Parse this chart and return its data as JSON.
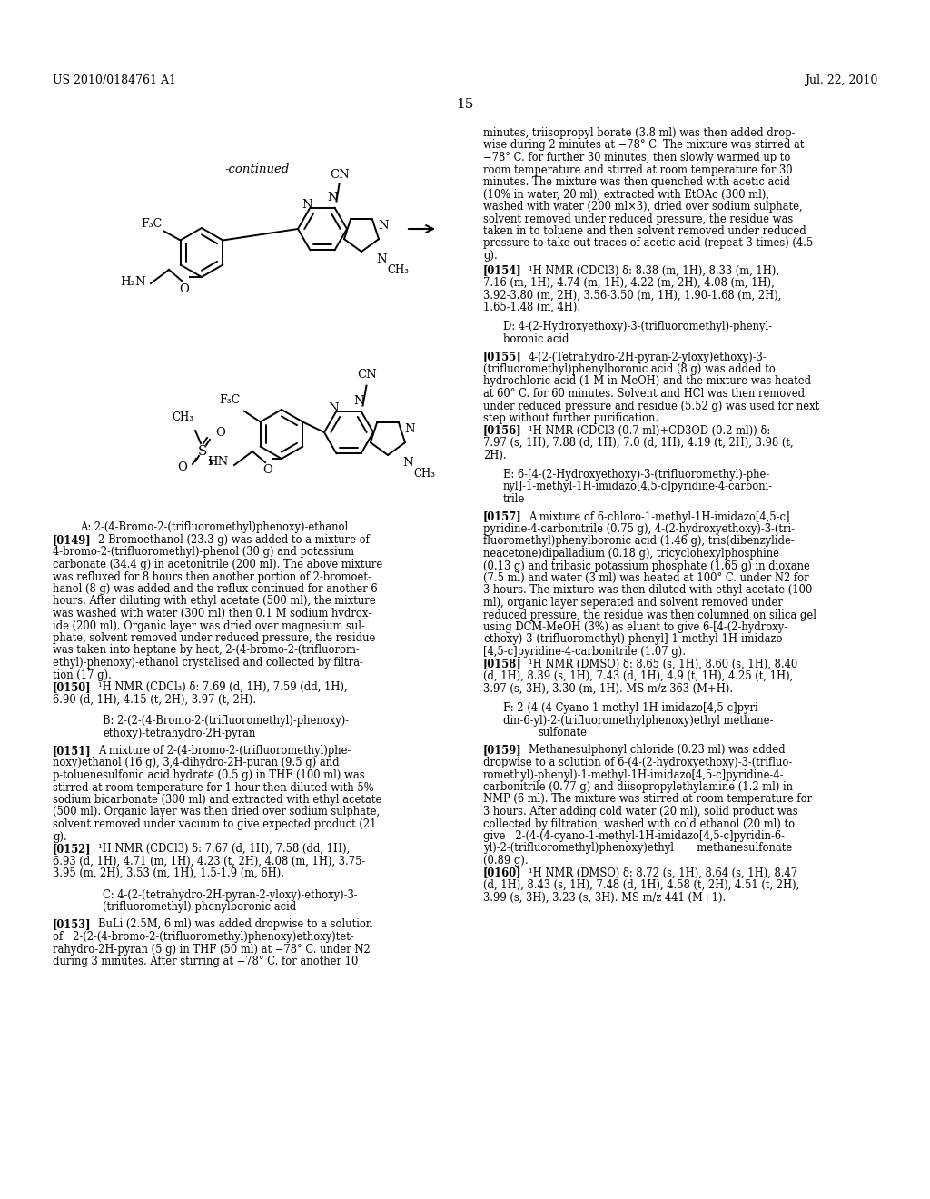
{
  "page_number": "15",
  "header_left": "US 2010/0184761 A1",
  "header_right": "Jul. 22, 2010",
  "bg": "#ffffff",
  "continued_label": "-continued",
  "compound_a_label": "A: 2-(4-Bromo-2-(trifluoromethyl)phenoxy)-ethanol",
  "right_top_lines": [
    "minutes, triisopropyl borate (3.8 ml) was then added drop-",
    "wise during 2 minutes at −78° C. The mixture was stirred at",
    "−78° C. for further 30 minutes, then slowly warmed up to",
    "room temperature and stirred at room temperature for 30",
    "minutes. The mixture was then quenched with acetic acid",
    "(10% in water, 20 ml), extracted with EtOAc (300 ml),",
    "washed with water (200 ml×3), dried over sodium sulphate,",
    "solvent removed under reduced pressure, the residue was",
    "taken in to toluene and then solvent removed under reduced",
    "pressure to take out traces of acetic acid (repeat 3 times) (4.5",
    "g)."
  ],
  "para_0154_lines": [
    "¹H NMR (CDCl3) δ: 8.38 (m, 1H), 8.33 (m, 1H),",
    "7.16 (m, 1H), 4.74 (m, 1H), 4.22 (m, 2H), 4.08 (m, 1H),",
    "3.92-3.80 (m, 2H), 3.56-3.50 (m, 1H), 1.90-1.68 (m, 2H),",
    "1.65-1.48 (m, 4H)."
  ],
  "label_D_lines": [
    "D: 4-(2-Hydroxyethoxy)-3-(trifluoromethyl)-phenyl-",
    "boronic acid"
  ],
  "para_0155_lines": [
    "4-(2-(Tetrahydro-2H-pyran-2-yloxy)ethoxy)-3-",
    "(trifluoromethyl)phenylboronic acid (8 g) was added to",
    "hydrochloric acid (1 M in MeOH) and the mixture was heated",
    "at 60° C. for 60 minutes. Solvent and HCl was then removed",
    "under reduced pressure and residue (5.52 g) was used for next",
    "step without further purification."
  ],
  "para_0156_lines": [
    "¹H NMR (CDCl3 (0.7 ml)+CD3OD (0.2 ml)) δ:",
    "7.97 (s, 1H), 7.88 (d, 1H), 7.0 (d, 1H), 4.19 (t, 2H), 3.98 (t,",
    "2H)."
  ],
  "label_E_lines": [
    "E: 6-[4-(2-Hydroxyethoxy)-3-(trifluoromethyl)-phe-",
    "nyl]-1-methyl-1H-imidazo[4,5-c]pyridine-4-carboni-",
    "trile"
  ],
  "para_0157_lines": [
    "A mixture of 6-chloro-1-methyl-1H-imidazo[4,5-c]",
    "pyridine-4-carbonitrile (0.75 g), 4-(2-hydroxyethoxy)-3-(tri-",
    "fluoromethyl)phenylboronic acid (1.46 g), tris(dibenzylide-",
    "neacetone)dipalladium (0.18 g), tricyclohexylphosphine",
    "(0.13 g) and tribasic potassium phosphate (1.65 g) in dioxane",
    "(7.5 ml) and water (3 ml) was heated at 100° C. under N2 for",
    "3 hours. The mixture was then diluted with ethyl acetate (100",
    "ml), organic layer seperated and solvent removed under",
    "reduced pressure, the residue was then columned on silica gel",
    "using DCM-MeOH (3%) as eluant to give 6-[4-(2-hydroxy-",
    "ethoxy)-3-(trifluoromethyl)-phenyl]-1-methyl-1H-imidazo",
    "[4,5-c]pyridine-4-carbonitrile (1.07 g)."
  ],
  "para_0158_lines": [
    "¹H NMR (DMSO) δ: 8.65 (s, 1H), 8.60 (s, 1H), 8.40",
    "(d, 1H), 8.39 (s, 1H), 7.43 (d, 1H), 4.9 (t, 1H), 4.25 (t, 1H),",
    "3.97 (s, 3H), 3.30 (m, 1H). MS m/z 363 (M+H)."
  ],
  "label_F_lines": [
    "F: 2-(4-(4-Cyano-1-methyl-1H-imidazo[4,5-c]pyri-",
    "din-6-yl)-2-(trifluoromethylphenoxy)ethyl methane-",
    "sulfonate"
  ],
  "para_0159_lines": [
    "Methanesulphonyl chloride (0.23 ml) was added",
    "dropwise to a solution of 6-(4-(2-hydroxyethoxy)-3-(trifluo-",
    "romethyl)-phenyl)-1-methyl-1H-imidazo[4,5-c]pyridine-4-",
    "carbonitrile (0.77 g) and diisopropylethylamine (1.2 ml) in",
    "NMP (6 ml). The mixture was stirred at room temperature for",
    "3 hours. After adding cold water (20 ml), solid product was",
    "collected by filtration, washed with cold ethanol (20 ml) to",
    "give   2-(4-(4-cyano-1-methyl-1H-imidazo[4,5-c]pyridin-6-",
    "yl)-2-(trifluoromethyl)phenoxy)ethyl       methanesulfonate",
    "(0.89 g)."
  ],
  "para_0160_lines": [
    "¹H NMR (DMSO) δ: 8.72 (s, 1H), 8.64 (s, 1H), 8.47",
    "(d, 1H), 8.43 (s, 1H), 7.48 (d, 1H), 4.58 (t, 2H), 4.51 (t, 2H),",
    "3.99 (s, 3H), 3.23 (s, 3H). MS m/z 441 (M+1)."
  ],
  "para_0149_lines": [
    "2-Bromoethanol (23.3 g) was added to a mixture of",
    "4-bromo-2-(trifluoromethyl)-phenol (30 g) and potassium",
    "carbonate (34.4 g) in acetonitrile (200 ml). The above mixture",
    "was refluxed for 8 hours then another portion of 2-bromoet-",
    "hanol (8 g) was added and the reflux continued for another 6",
    "hours. After diluting with ethyl acetate (500 ml), the mixture",
    "was washed with water (300 ml) then 0.1 M sodium hydrox-",
    "ide (200 ml). Organic layer was dried over magnesium sul-",
    "phate, solvent removed under reduced pressure, the residue",
    "was taken into heptane by heat, 2-(4-bromo-2-(trifluorom-",
    "ethyl)-phenoxy)-ethanol crystalised and collected by filtra-",
    "tion (17 g)."
  ],
  "para_0150_lines": [
    "¹H NMR (CDCl₃) δ: 7.69 (d, 1H), 7.59 (dd, 1H),",
    "6.90 (d, 1H), 4.15 (t, 2H), 3.97 (t, 2H)."
  ],
  "label_B_lines": [
    "B: 2-(2-(4-Bromo-2-(trifluoromethyl)-phenoxy)-",
    "ethoxy)-tetrahydro-2H-pyran"
  ],
  "para_0151_lines": [
    "A mixture of 2-(4-bromo-2-(trifluoromethyl)phe-",
    "noxy)ethanol (16 g), 3,4-dihydro-2H-puran (9.5 g) and",
    "p-toluenesulfonic acid hydrate (0.5 g) in THF (100 ml) was",
    "stirred at room temperature for 1 hour then diluted with 5%",
    "sodium bicarbonate (300 ml) and extracted with ethyl acetate",
    "(500 ml). Organic layer was then dried over sodium sulphate,",
    "solvent removed under vacuum to give expected product (21",
    "g)."
  ],
  "para_0152_lines": [
    "¹H NMR (CDCl3) δ: 7.67 (d, 1H), 7.58 (dd, 1H),",
    "6.93 (d, 1H), 4.71 (m, 1H), 4.23 (t, 2H), 4.08 (m, 1H), 3.75-",
    "3.95 (m, 2H), 3.53 (m, 1H), 1.5-1.9 (m, 6H)."
  ],
  "label_C_lines": [
    "C: 4-(2-(tetrahydro-2H-pyran-2-yloxy)-ethoxy)-3-",
    "(trifluoromethyl)-phenylboronic acid"
  ],
  "para_0153_lines": [
    "BuLi (2.5M, 6 ml) was added dropwise to a solution",
    "of   2-(2-(4-bromo-2-(trifluoromethyl)phenoxy)ethoxy)tet-",
    "rahydro-2H-pyran (5 g) in THF (50 ml) at −78° C. under N2",
    "during 3 minutes. After stirring at −78° C. for another 10"
  ]
}
